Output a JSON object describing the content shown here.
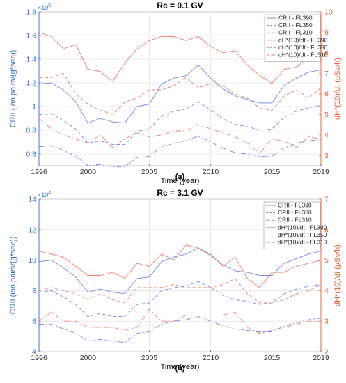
{
  "chart_data": [
    {
      "type": "line",
      "panel_label": "(a)",
      "title": "Rc = 0.1 GV",
      "xlabel": "Time (year)",
      "ylabel_left": "CRII (ion pairs/(g*sec))",
      "ylabel_right": "dH*(10)/dt (μSv/h)",
      "left_multiplier": "×10",
      "left_multiplier_exp": "5",
      "xlim": [
        1996,
        2019
      ],
      "ylim_left": [
        0.5,
        1.8
      ],
      "ylim_right": [
        2.5,
        10
      ],
      "xticks": [
        "1996",
        "2000",
        "2005",
        "2010",
        "2015",
        "2019"
      ],
      "yticks_left": [
        "0.6",
        "0.8",
        "1",
        "1.2",
        "1.4",
        "1.6",
        "1.8"
      ],
      "yticks_right": [
        "3",
        "4",
        "5",
        "6",
        "7",
        "8",
        "9",
        "10"
      ],
      "legend_position": "top-right",
      "x": [
        1996,
        1997,
        1998,
        1999,
        2000,
        2001,
        2002,
        2003,
        2004,
        2005,
        2006,
        2007,
        2008,
        2009,
        2010,
        2011,
        2012,
        2013,
        2014,
        2015,
        2016,
        2017,
        2018,
        2019
      ],
      "series": [
        {
          "name": "CRII - FL390",
          "axis": "left",
          "color": "#6f86e8",
          "dash": "solid",
          "values": [
            1.19,
            1.2,
            1.14,
            1.04,
            0.86,
            0.9,
            0.87,
            0.86,
            1.0,
            1.02,
            1.19,
            1.24,
            1.26,
            1.35,
            1.24,
            1.15,
            1.09,
            1.06,
            1.03,
            1.03,
            1.18,
            1.24,
            1.29,
            1.31
          ]
        },
        {
          "name": "CRII - FL350",
          "axis": "left",
          "color": "#6f86e8",
          "dash": "dashed",
          "values": [
            0.93,
            0.94,
            0.88,
            0.81,
            0.69,
            0.71,
            0.68,
            0.68,
            0.79,
            0.81,
            0.92,
            0.96,
            0.98,
            1.04,
            0.97,
            0.9,
            0.85,
            0.83,
            0.8,
            0.81,
            0.91,
            0.96,
            0.99,
            1.01
          ]
        },
        {
          "name": "CRII - FL310",
          "axis": "left",
          "color": "#6f86e8",
          "dash": "dashdot",
          "values": [
            0.66,
            0.67,
            0.63,
            0.58,
            0.5,
            0.51,
            0.49,
            0.49,
            0.57,
            0.58,
            0.66,
            0.69,
            0.71,
            0.75,
            0.7,
            0.65,
            0.61,
            0.6,
            0.58,
            0.58,
            0.65,
            0.69,
            0.71,
            0.72
          ]
        },
        {
          "name": "dH*(10)/dt - FL390",
          "axis": "right",
          "color": "#ef7a6e",
          "dash": "solid",
          "values": [
            9.0,
            8.8,
            8.2,
            8.4,
            7.2,
            7.1,
            6.6,
            7.5,
            8.2,
            8.6,
            8.8,
            8.8,
            8.6,
            8.8,
            8.3,
            8.0,
            8.1,
            7.4,
            6.9,
            6.5,
            7.2,
            7.3,
            7.8,
            8.8
          ]
        },
        {
          "name": "dH*(10)/dt - FL350",
          "axis": "right",
          "color": "#ef7a6e",
          "dash": "dashed",
          "values": [
            6.8,
            6.8,
            7.0,
            6.0,
            5.5,
            5.2,
            5.0,
            5.6,
            5.8,
            6.2,
            6.2,
            6.4,
            6.8,
            6.3,
            6.5,
            6.4,
            6.0,
            5.8,
            5.3,
            5.2,
            5.9,
            6.2,
            5.8,
            6.3
          ]
        },
        {
          "name": "dH*(10)/dt - FL310",
          "axis": "right",
          "color": "#ef7a6e",
          "dash": "dashdot",
          "values": [
            4.8,
            4.3,
            4.0,
            3.8,
            3.6,
            4.0,
            3.4,
            3.8,
            4.1,
            3.9,
            4.0,
            4.2,
            4.2,
            4.5,
            4.3,
            4.1,
            3.9,
            3.6,
            3.1,
            3.8,
            3.7,
            3.4,
            3.9,
            3.8
          ]
        }
      ]
    },
    {
      "type": "line",
      "panel_label": "(b)",
      "title": "Rc = 3.1 GV",
      "xlabel": "Time (year)",
      "ylabel_left": "CRII (ion pairs/(g*sec))",
      "ylabel_right": "dH*(10)/dt (μSv/h)",
      "left_multiplier": "×10",
      "left_multiplier_exp": "4",
      "xlim": [
        1996,
        2019
      ],
      "ylim_left": [
        4,
        14
      ],
      "ylim_right": [
        2,
        7
      ],
      "xticks": [
        "1996",
        "2000",
        "2005",
        "2010",
        "2015",
        "2019"
      ],
      "yticks_left": [
        "4",
        "6",
        "8",
        "10",
        "12",
        "14"
      ],
      "yticks_right": [
        "2",
        "3",
        "4",
        "5",
        "6",
        "7"
      ],
      "legend_position": "top-right",
      "x": [
        1996,
        1997,
        1998,
        1999,
        2000,
        2001,
        2002,
        2003,
        2004,
        2005,
        2006,
        2007,
        2008,
        2009,
        2010,
        2011,
        2012,
        2013,
        2014,
        2015,
        2016,
        2017,
        2018,
        2019
      ],
      "series": [
        {
          "name": "CRII - FL390",
          "axis": "left",
          "color": "#6f86e8",
          "dash": "solid",
          "values": [
            9.9,
            10.0,
            9.5,
            8.9,
            7.9,
            8.1,
            7.9,
            7.8,
            8.8,
            8.9,
            9.9,
            10.2,
            10.4,
            10.8,
            10.3,
            9.7,
            9.3,
            9.2,
            9.0,
            9.0,
            9.8,
            10.1,
            10.4,
            10.6
          ]
        },
        {
          "name": "CRII - FL350",
          "axis": "left",
          "color": "#6f86e8",
          "dash": "dashed",
          "values": [
            7.9,
            8.0,
            7.6,
            7.1,
            6.3,
            6.5,
            6.3,
            6.3,
            7.1,
            7.2,
            8.0,
            8.2,
            8.3,
            8.6,
            8.2,
            7.7,
            7.4,
            7.3,
            7.1,
            7.2,
            7.8,
            8.1,
            8.3,
            8.4
          ]
        },
        {
          "name": "CRII - FL310",
          "axis": "left",
          "color": "#6f86e8",
          "dash": "dashdot",
          "values": [
            5.8,
            5.8,
            5.5,
            5.2,
            4.7,
            4.8,
            4.7,
            4.6,
            5.2,
            5.3,
            5.8,
            6.0,
            6.1,
            6.3,
            6.0,
            5.7,
            5.5,
            5.4,
            5.3,
            5.3,
            5.7,
            5.9,
            6.1,
            6.2
          ]
        },
        {
          "name": "dH*(10)/dt - FL390",
          "axis": "right",
          "color": "#ef7a6e",
          "dash": "solid",
          "values": [
            5.3,
            5.2,
            5.1,
            4.8,
            4.5,
            4.5,
            4.6,
            4.4,
            4.9,
            4.8,
            5.2,
            5.0,
            5.5,
            5.4,
            5.2,
            4.8,
            5.1,
            4.4,
            4.1,
            4.6,
            4.6,
            4.8,
            4.9,
            5.0
          ]
        },
        {
          "name": "dH*(10)/dt - FL350",
          "axis": "right",
          "color": "#ef7a6e",
          "dash": "dashed",
          "values": [
            4.0,
            4.1,
            4.0,
            3.9,
            3.7,
            3.9,
            3.7,
            3.6,
            4.1,
            4.1,
            4.1,
            4.2,
            4.1,
            4.1,
            4.1,
            4.2,
            4.4,
            3.9,
            3.6,
            3.6,
            3.7,
            3.9,
            4.0,
            4.2
          ]
        },
        {
          "name": "dH*(10)/dt - FL310",
          "axis": "right",
          "color": "#ef7a6e",
          "dash": "dashdot",
          "values": [
            3.0,
            3.3,
            3.0,
            3.0,
            2.8,
            2.8,
            2.8,
            2.7,
            2.8,
            3.4,
            3.0,
            3.0,
            3.2,
            3.2,
            3.2,
            3.2,
            3.3,
            2.8,
            2.6,
            2.7,
            2.8,
            2.9,
            3.0,
            3.0
          ]
        }
      ]
    }
  ]
}
